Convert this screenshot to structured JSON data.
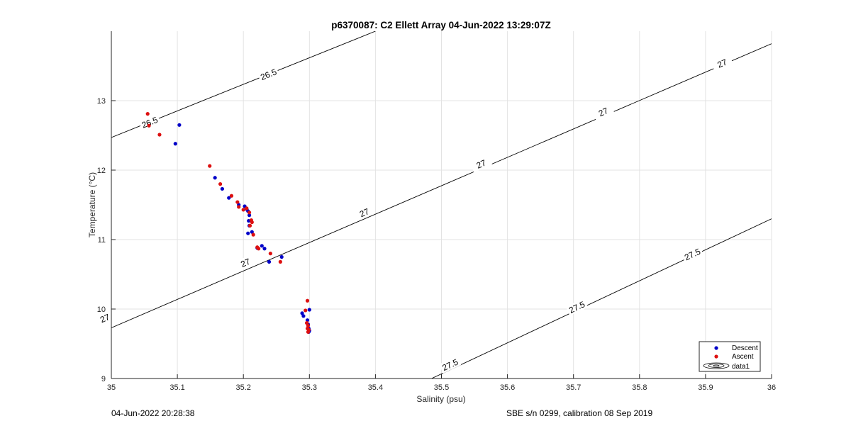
{
  "footer": {
    "left": "04-Jun-2022 20:28:38",
    "right": "SBE s/n 0299, calibration 08 Sep 2019"
  },
  "colors": {
    "descent": "#0000c8",
    "ascent": "#dd1010",
    "contour": "#000000",
    "grid": "#e3e3e3"
  },
  "chart_data": {
    "type": "scatter",
    "title": "p6370087: C2 Ellett Array 04-Jun-2022 13:29:07Z",
    "xlabel": "Salinity (psu)",
    "ylabel": "Temperature (°C)",
    "xlim": [
      35,
      36
    ],
    "ylim": [
      9,
      14
    ],
    "xticks": [
      35,
      35.1,
      35.2,
      35.3,
      35.4,
      35.5,
      35.6,
      35.7,
      35.8,
      35.9,
      36
    ],
    "xtick_labels": [
      "35",
      "35.1",
      "35.2",
      "35.3",
      "35.4",
      "35.5",
      "35.6",
      "35.7",
      "35.8",
      "35.9",
      "36"
    ],
    "yticks": [
      9,
      10,
      11,
      12,
      13
    ],
    "ytick_labels": [
      "9",
      "10",
      "11",
      "12",
      "13"
    ],
    "grid": true,
    "legend": {
      "position": "bottom-right",
      "entries": [
        "Descent",
        "Ascent",
        "data1"
      ]
    },
    "contours": [
      {
        "level": "26.5",
        "points": [
          [
            35.0,
            12.47
          ],
          [
            35.4,
            14.0
          ]
        ],
        "labels": [
          [
            35.238,
            13.38
          ],
          [
            35.058,
            12.69
          ]
        ]
      },
      {
        "level": "27",
        "points": [
          [
            35.0,
            9.73
          ],
          [
            36.0,
            13.82
          ]
        ],
        "labels": [
          [
            34.99,
            9.87
          ],
          [
            35.203,
            10.67
          ],
          [
            35.383,
            11.39
          ],
          [
            35.56,
            12.09
          ],
          [
            35.745,
            12.84
          ],
          [
            35.925,
            13.54
          ]
        ]
      },
      {
        "level": "27.5",
        "points": [
          [
            35.485,
            9.0
          ],
          [
            36.0,
            11.3
          ]
        ],
        "labels": [
          [
            35.513,
            9.2
          ],
          [
            35.705,
            10.03
          ],
          [
            35.88,
            10.79
          ]
        ]
      }
    ],
    "series": [
      {
        "name": "Descent",
        "marker": "dot",
        "x": [
          35.103,
          35.097,
          35.157,
          35.168,
          35.178,
          35.193,
          35.202,
          35.205,
          35.207,
          35.209,
          35.208,
          35.209,
          35.207,
          35.213,
          35.221,
          35.228,
          35.232,
          35.239,
          35.258,
          35.289,
          35.291,
          35.297,
          35.298,
          35.3,
          35.299,
          35.3,
          35.299
        ],
        "y": [
          12.65,
          12.38,
          11.89,
          11.73,
          11.6,
          11.5,
          11.48,
          11.44,
          11.41,
          11.35,
          11.27,
          11.2,
          11.09,
          11.11,
          10.88,
          10.91,
          10.87,
          10.68,
          10.75,
          9.94,
          9.9,
          9.84,
          9.78,
          9.99,
          9.72,
          9.69,
          9.67
        ]
      },
      {
        "name": "Ascent",
        "marker": "dot",
        "x": [
          35.055,
          35.057,
          35.073,
          35.149,
          35.165,
          35.182,
          35.191,
          35.193,
          35.2,
          35.205,
          35.209,
          35.212,
          35.213,
          35.21,
          35.215,
          35.221,
          35.223,
          35.241,
          35.256,
          35.294,
          35.297,
          35.296,
          35.298,
          35.297,
          35.299,
          35.298
        ],
        "y": [
          12.81,
          12.64,
          12.51,
          12.06,
          11.8,
          11.63,
          11.54,
          11.47,
          11.43,
          11.45,
          11.39,
          11.28,
          11.25,
          11.2,
          11.07,
          10.89,
          10.87,
          10.8,
          10.68,
          9.98,
          10.12,
          9.8,
          9.76,
          9.72,
          9.7,
          9.67
        ]
      }
    ]
  }
}
